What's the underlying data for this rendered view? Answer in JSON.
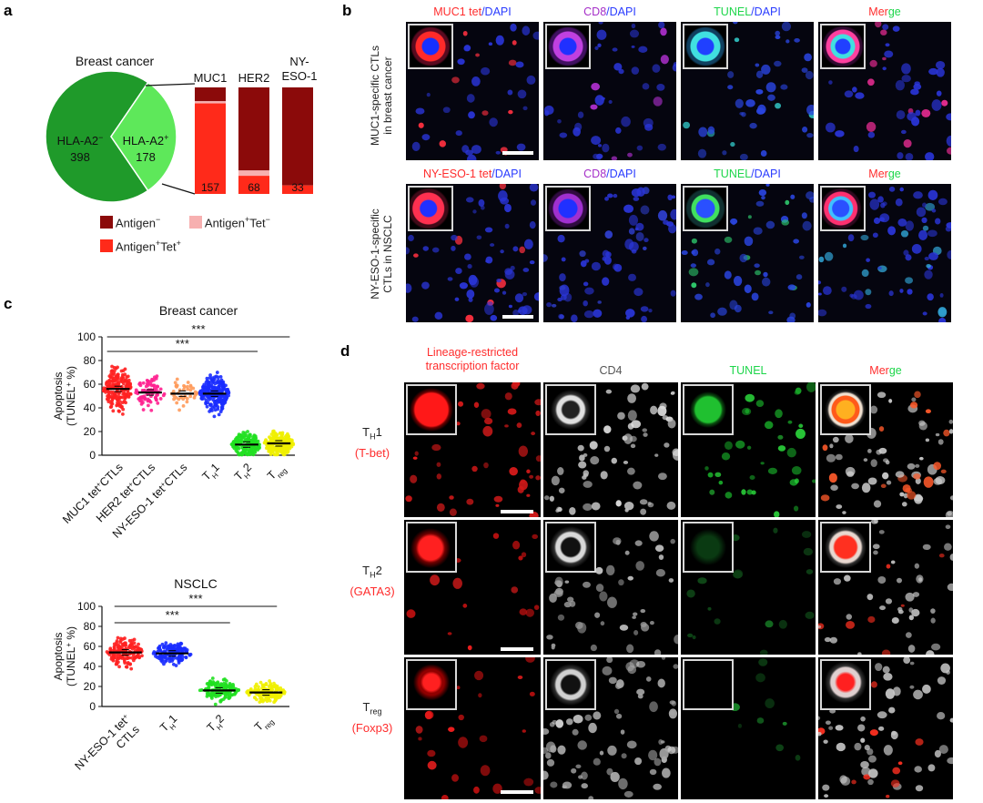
{
  "panels": {
    "a": "a",
    "b": "b",
    "c": "c",
    "d": "d"
  },
  "colors": {
    "antigen_neg": "#8b0a0a",
    "antigen_pos_tet_neg": "#f7b0b0",
    "antigen_pos_tet_pos": "#ff2a1a",
    "hla_a2_neg": "#1f9a2a",
    "hla_a2_pos": "#5ee85a",
    "red": "#ff2d2d",
    "blue": "#2a3cff",
    "purple": "#a52fc8",
    "green": "#1dd64a",
    "gray": "#555555"
  },
  "panel_a": {
    "pie_title": "Breast cancer",
    "slices": [
      {
        "label": "HLA-A2",
        "sup": "−",
        "value": 398
      },
      {
        "label": "HLA-A2",
        "sup": "+",
        "value": 178
      }
    ],
    "bars": [
      {
        "name": "MUC1",
        "neg": 0.13,
        "pos_tet_neg": 0.02,
        "pos_tet_pos": 0.85,
        "count": "157"
      },
      {
        "name": "HER2",
        "neg": 0.78,
        "pos_tet_neg": 0.05,
        "pos_tet_pos": 0.17,
        "count": "68"
      },
      {
        "name_line1": "NY-",
        "name_line2": "ESO-1",
        "neg": 0.92,
        "pos_tet_neg": 0.0,
        "pos_tet_pos": 0.08,
        "count": "33"
      }
    ],
    "legend": [
      {
        "text": "Antigen",
        "sup": "−"
      },
      {
        "text": "Antigen",
        "sup": "+",
        "text2": "Tet",
        "sup2": "−"
      },
      {
        "text": "Antigen",
        "sup": "+",
        "text2": "Tet",
        "sup2": "+"
      }
    ]
  },
  "panel_b": {
    "rows": [
      {
        "row_label_1": "MUC1-specific CTLs",
        "row_label_2": "in breast cancer",
        "cols": [
          {
            "a": "MUC1 tet",
            "b": "/DAPI"
          },
          {
            "a": "CD8",
            "b": "/DAPI"
          },
          {
            "a": "TUNEL",
            "b": "/DAPI"
          },
          {
            "a": "Mer",
            "b": "ge"
          }
        ]
      },
      {
        "row_label_1": "NY-ESO-1-specific",
        "row_label_2": "CTLs in NSCLC",
        "cols": [
          {
            "a": "NY-ESO-1 tet",
            "b": "/DAPI"
          },
          {
            "a": "CD8",
            "b": "/DAPI"
          },
          {
            "a": "TUNEL",
            "b": "/DAPI"
          },
          {
            "a": "Mer",
            "b": "ge"
          }
        ]
      }
    ]
  },
  "chart_data": [
    {
      "type": "scatter",
      "title": "Breast cancer",
      "ylabel_1": "Apoptosis",
      "ylabel_2": "(TUNEL",
      "ylabel_sup": "+",
      "ylabel_3": " %)",
      "ylim": [
        0,
        100
      ],
      "yticks": [
        0,
        20,
        40,
        60,
        80,
        100
      ],
      "significance": [
        {
          "from": 0,
          "to": 4,
          "label": "***"
        },
        {
          "from": 0,
          "to": 5,
          "label": "***"
        }
      ],
      "categories": [
        {
          "main": "MUC1 tet",
          "sup": "+",
          "tail": "CTLs",
          "color": "#ff2020",
          "mean": 56,
          "spread": 13,
          "n": 190
        },
        {
          "main": "HER2 tet",
          "sup": "+",
          "tail": "CTLs",
          "color": "#ff1f8f",
          "mean": 53,
          "spread": 11,
          "n": 80
        },
        {
          "main": "NY-ESO-1 tet",
          "sup": "+",
          "tail": "CTLs",
          "color": "#ff9a5a",
          "mean": 52,
          "spread": 8,
          "n": 40
        },
        {
          "main": "T",
          "sub": "H",
          "tail": "1",
          "color": "#1a2cff",
          "mean": 52,
          "spread": 11,
          "n": 230
        },
        {
          "main": "T",
          "sub": "H",
          "tail": "2",
          "color": "#21e021",
          "mean": 9,
          "spread": 7,
          "n": 180
        },
        {
          "main": "T",
          "sub": "reg",
          "tail": "",
          "color": "#f0f000",
          "mean": 10,
          "spread": 8,
          "n": 210
        }
      ]
    },
    {
      "type": "scatter",
      "title": "NSCLC",
      "ylabel_1": "Apoptosis",
      "ylabel_2": "(TUNEL",
      "ylabel_sup": "+",
      "ylabel_3": " %)",
      "ylim": [
        0,
        100
      ],
      "yticks": [
        0,
        20,
        40,
        60,
        80,
        100
      ],
      "significance": [
        {
          "from": 0,
          "to": 2,
          "label": "***"
        },
        {
          "from": 0,
          "to": 3,
          "label": "***"
        }
      ],
      "categories": [
        {
          "main": "NY-ESO-1 tet",
          "sup": "+",
          "tail": "",
          "line2": "CTLs",
          "color": "#ff2020",
          "mean": 54,
          "spread": 10,
          "n": 150
        },
        {
          "main": "T",
          "sub": "H",
          "tail": "1",
          "color": "#1a2cff",
          "mean": 53,
          "spread": 8,
          "n": 150
        },
        {
          "main": "T",
          "sub": "H",
          "tail": "2",
          "color": "#21e021",
          "mean": 16,
          "spread": 8,
          "n": 140
        },
        {
          "main": "T",
          "sub": "reg",
          "tail": "",
          "color": "#f0f000",
          "mean": 14,
          "spread": 7,
          "n": 150
        }
      ]
    }
  ],
  "panel_d": {
    "col_heads": [
      {
        "line1": "Lineage-restricted",
        "line2": "transcription factor"
      },
      {
        "line1": "CD4"
      },
      {
        "line1": "TUNEL"
      },
      {
        "a": "Mer",
        "b": "ge"
      }
    ],
    "rows": [
      {
        "main": "T",
        "sub": "H",
        "tail": "1",
        "tf": "(T-bet)"
      },
      {
        "main": "T",
        "sub": "H",
        "tail": "2",
        "tf": "(GATA3)"
      },
      {
        "main": "T",
        "sub": "reg",
        "tail": "",
        "tf": "(Foxp3)"
      }
    ]
  }
}
